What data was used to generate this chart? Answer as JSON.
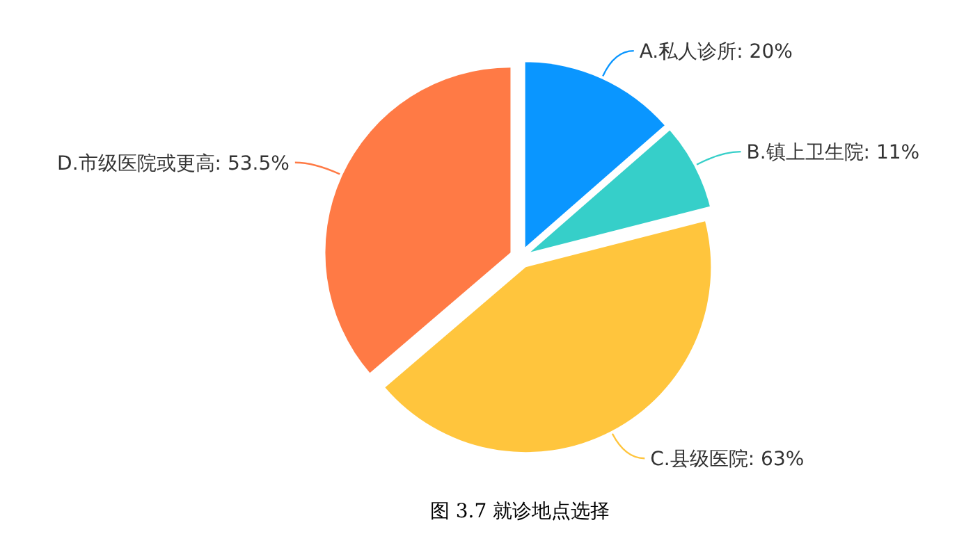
{
  "chart_data": {
    "type": "pie",
    "title": "图 3.7 就诊地点选择",
    "categories": [
      "A.私人诊所",
      "B.镇上卫生院",
      "C.县级医院",
      "D.市级医院或更高"
    ],
    "values": [
      20,
      11,
      63,
      53.5
    ],
    "value_labels": [
      "20%",
      "11%",
      "63%",
      "53.5%"
    ],
    "colors": [
      "#0a96ff",
      "#36cfc9",
      "#ffc53d",
      "#ff7a45"
    ]
  }
}
